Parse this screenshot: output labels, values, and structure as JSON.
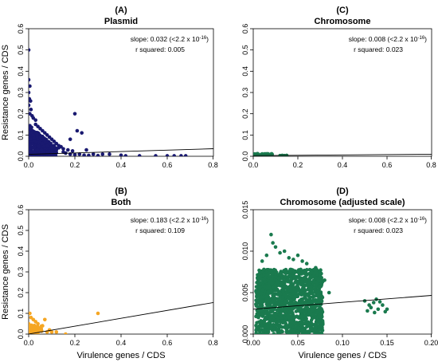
{
  "figure": {
    "ylabel": "Resistance genes / CDS",
    "xlabel": "Virulence genes / CDS"
  },
  "chart_data": [
    {
      "type": "scatter",
      "letter": "(A)",
      "title": "Plasmid",
      "xlabel": "",
      "ylabel": "Resistance genes / CDS",
      "xlim": [
        0,
        0.8
      ],
      "ylim": [
        0,
        0.6
      ],
      "xticks": [
        "0.0",
        "0.2",
        "0.4",
        "0.6",
        "0.8"
      ],
      "yticks": [
        "0.0",
        "0.1",
        "0.2",
        "0.3",
        "0.4",
        "0.5",
        "0.6"
      ],
      "color": "#191970",
      "annotation": {
        "slope_prefix": "slope: 0.032 (<2.2 x 10",
        "slope_exp": "-16",
        "slope_suffix": ")",
        "r_squared": "r squared: 0.005"
      },
      "regression": {
        "intercept": 0.009,
        "slope": 0.032
      },
      "points": [
        [
          0.0,
          0.5
        ],
        [
          0.0,
          0.36
        ],
        [
          0.005,
          0.33
        ],
        [
          0.0,
          0.3
        ],
        [
          0.003,
          0.27
        ],
        [
          0.008,
          0.26
        ],
        [
          0.0,
          0.24
        ],
        [
          0.01,
          0.22
        ],
        [
          0.005,
          0.2
        ],
        [
          0.015,
          0.19
        ],
        [
          0.02,
          0.18
        ],
        [
          0.03,
          0.17
        ],
        [
          0.03,
          0.15
        ],
        [
          0.04,
          0.14
        ],
        [
          0.05,
          0.13
        ],
        [
          0.06,
          0.12
        ],
        [
          0.07,
          0.11
        ],
        [
          0.08,
          0.1
        ],
        [
          0.09,
          0.09
        ],
        [
          0.1,
          0.08
        ],
        [
          0.11,
          0.07
        ],
        [
          0.12,
          0.06
        ],
        [
          0.13,
          0.05
        ],
        [
          0.14,
          0.045
        ],
        [
          0.15,
          0.035
        ],
        [
          0.17,
          0.03
        ],
        [
          0.19,
          0.025
        ],
        [
          0.18,
          0.08
        ],
        [
          0.2,
          0.2
        ],
        [
          0.21,
          0.12
        ],
        [
          0.23,
          0.11
        ],
        [
          0.25,
          0.03
        ],
        [
          0.22,
          0.01
        ],
        [
          0.28,
          0.01
        ],
        [
          0.32,
          0.01
        ],
        [
          0.35,
          0.01
        ],
        [
          0.4,
          0.005
        ],
        [
          0.42,
          0.002
        ],
        [
          0.48,
          0.002
        ],
        [
          0.55,
          0.002
        ],
        [
          0.6,
          0.002
        ],
        [
          0.63,
          0.002
        ],
        [
          0.66,
          0.002
        ],
        [
          0.68,
          0.002
        ],
        [
          0.02,
          0.1
        ],
        [
          0.04,
          0.08
        ],
        [
          0.06,
          0.06
        ],
        [
          0.08,
          0.05
        ],
        [
          0.1,
          0.04
        ],
        [
          0.12,
          0.03
        ],
        [
          0.05,
          0.09
        ],
        [
          0.07,
          0.07
        ],
        [
          0.09,
          0.06
        ],
        [
          0.11,
          0.05
        ],
        [
          0.13,
          0.04
        ],
        [
          0.15,
          0.02
        ],
        [
          0.16,
          0.015
        ],
        [
          0.18,
          0.01
        ],
        [
          0.2,
          0.008
        ],
        [
          0.24,
          0.005
        ],
        [
          0.26,
          0.004
        ],
        [
          0.3,
          0.003
        ]
      ],
      "dense": {
        "x": [
          0,
          0.12
        ],
        "y": [
          0,
          0.15
        ]
      }
    },
    {
      "type": "scatter",
      "letter": "(C)",
      "title": "Chromosome",
      "xlabel": "",
      "ylabel": "",
      "xlim": [
        0,
        0.8
      ],
      "ylim": [
        0,
        0.6
      ],
      "xticks": [
        "0.0",
        "0.2",
        "0.4",
        "0.6",
        "0.8"
      ],
      "yticks": [
        "0.0",
        "0.1",
        "0.2",
        "0.3",
        "0.4",
        "0.5",
        "0.6"
      ],
      "color": "#1a7a4e",
      "annotation": {
        "slope_prefix": "slope: 0.008 (<2.2 x 10",
        "slope_exp": "-16",
        "slope_suffix": ")",
        "r_squared": "r squared: 0.023"
      },
      "regression": {
        "intercept": 0.003,
        "slope": 0.008
      },
      "points": [
        [
          0.005,
          0.008
        ],
        [
          0.02,
          0.012
        ],
        [
          0.04,
          0.011
        ],
        [
          0.06,
          0.01
        ],
        [
          0.08,
          0.006
        ],
        [
          0.03,
          0.004
        ],
        [
          0.07,
          0.002
        ],
        [
          0.13,
          0.004
        ],
        [
          0.14,
          0.003
        ],
        [
          0.15,
          0.004
        ],
        [
          0.12,
          0.003
        ]
      ],
      "dense": {
        "x": [
          0,
          0.085
        ],
        "y": [
          0,
          0.012
        ]
      }
    },
    {
      "type": "scatter",
      "letter": "(B)",
      "title": "Both",
      "xlabel": "Virulence genes / CDS",
      "ylabel": "Resistance genes / CDS",
      "xlim": [
        0,
        0.8
      ],
      "ylim": [
        0,
        0.6
      ],
      "xticks": [
        "0.0",
        "0.2",
        "0.4",
        "0.6",
        "0.8"
      ],
      "yticks": [
        "0.0",
        "0.1",
        "0.2",
        "0.3",
        "0.4",
        "0.5",
        "0.6"
      ],
      "color": "#f5a623",
      "annotation": {
        "slope_prefix": "slope: 0.183 (<2.2 x 10",
        "slope_exp": "-16",
        "slope_suffix": ")",
        "r_squared": "r squared: 0.109"
      },
      "regression": {
        "intercept": 0.0,
        "slope": 0.183
      },
      "points": [
        [
          0.005,
          0.1
        ],
        [
          0.01,
          0.08
        ],
        [
          0.02,
          0.07
        ],
        [
          0.07,
          0.07
        ],
        [
          0.3,
          0.1
        ],
        [
          0.04,
          0.05
        ],
        [
          0.06,
          0.04
        ],
        [
          0.03,
          0.06
        ],
        [
          0.09,
          0.02
        ],
        [
          0.1,
          0.01
        ],
        [
          0.12,
          0.01
        ],
        [
          0.16,
          0.0
        ],
        [
          0.05,
          0.02
        ],
        [
          0.08,
          0.01
        ],
        [
          0.02,
          0.03
        ],
        [
          0.01,
          0.04
        ],
        [
          0.03,
          0.01
        ],
        [
          0.0,
          0.05
        ]
      ],
      "dense": {
        "x": [
          0,
          0.06
        ],
        "y": [
          0,
          0.045
        ]
      }
    },
    {
      "type": "scatter",
      "letter": "(D)",
      "title": "Chromosome (adjusted scale)",
      "xlabel": "Virulence genes / CDS",
      "ylabel": "",
      "xlim": [
        0,
        0.2
      ],
      "ylim": [
        0,
        0.015
      ],
      "xticks": [
        "0.00",
        "0.05",
        "0.10",
        "0.15",
        "0.20"
      ],
      "yticks": [
        "0.000",
        "0.005",
        "0.010",
        "0.015"
      ],
      "color": "#1a7a4e",
      "annotation": {
        "slope_prefix": "slope: 0.008 (<2.2 x 10",
        "slope_exp": "-16",
        "slope_suffix": ")",
        "r_squared": "r squared: 0.023"
      },
      "regression": {
        "intercept": 0.003,
        "slope": 0.008
      },
      "points": [
        [
          0.02,
          0.012
        ],
        [
          0.025,
          0.0105
        ],
        [
          0.03,
          0.0098
        ],
        [
          0.015,
          0.0095
        ],
        [
          0.04,
          0.0092
        ],
        [
          0.055,
          0.0088
        ],
        [
          0.06,
          0.0085
        ],
        [
          0.07,
          0.008
        ],
        [
          0.01,
          0.0088
        ],
        [
          0.035,
          0.01
        ],
        [
          0.045,
          0.009
        ],
        [
          0.05,
          0.0095
        ],
        [
          0.065,
          0.0075
        ],
        [
          0.075,
          0.007
        ],
        [
          0.08,
          0.0065
        ],
        [
          0.085,
          0.005
        ],
        [
          0.012,
          0.0078
        ],
        [
          0.022,
          0.011
        ],
        [
          0.125,
          0.004
        ],
        [
          0.13,
          0.0035
        ],
        [
          0.135,
          0.0038
        ],
        [
          0.14,
          0.003
        ],
        [
          0.145,
          0.0035
        ],
        [
          0.15,
          0.003
        ],
        [
          0.128,
          0.0028
        ],
        [
          0.138,
          0.0042
        ],
        [
          0.148,
          0.0027
        ],
        [
          0.142,
          0.0039
        ],
        [
          0.132,
          0.0032
        ],
        [
          0.136,
          0.0026
        ]
      ],
      "dense": {
        "x": [
          0.003,
          0.078
        ],
        "y": [
          0.0,
          0.0078
        ]
      }
    }
  ]
}
